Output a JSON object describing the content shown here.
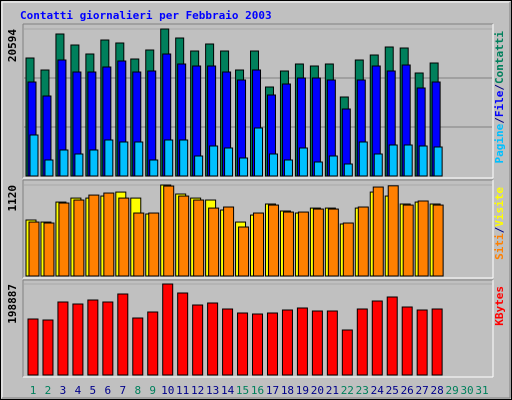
{
  "chart_data": [
    {
      "type": "bar",
      "title": "Contatti giornalieri per Febbraio 2003",
      "legend_separator": "/",
      "ylim": [
        0,
        20594
      ],
      "yticks": [
        20594
      ],
      "series": [
        {
          "name": "Contatti",
          "color": "#00805c",
          "values": [
            16531,
            14850,
            19894,
            18352,
            17092,
            19053,
            18633,
            16391,
            17652,
            20594,
            19333,
            17512,
            18493,
            17512,
            14850,
            17512,
            12469,
            14710,
            15691,
            15410,
            15691,
            11068,
            16251,
            16951,
            18072,
            17932,
            14430,
            15831,
            null,
            null,
            null
          ]
        },
        {
          "name": "File",
          "color": "#0000ff",
          "values": [
            13169,
            11208,
            16251,
            14570,
            14570,
            15271,
            16111,
            14570,
            14710,
            17092,
            15691,
            15410,
            15410,
            14570,
            13449,
            14850,
            11348,
            12889,
            13729,
            13729,
            13449,
            9386,
            13449,
            15410,
            14710,
            15551,
            12329,
            13169,
            null,
            null,
            null
          ]
        },
        {
          "name": "Pagine",
          "color": "#00c0ff",
          "values": [
            5744,
            2242,
            3643,
            3082,
            3643,
            5044,
            4763,
            4763,
            2242,
            5044,
            5044,
            2802,
            4203,
            3923,
            2522,
            6725,
            3082,
            2242,
            3923,
            1961,
            2802,
            1681,
            4763,
            3082,
            4343,
            4343,
            4203,
            4063,
            null,
            null,
            null
          ]
        }
      ]
    },
    {
      "type": "bar",
      "legend_separator": "/",
      "ylim": [
        0,
        1120
      ],
      "yticks": [
        1120
      ],
      "series": [
        {
          "name": "Visite",
          "color": "#ffff00",
          "values": [
            689,
            664,
            910,
            959,
            959,
            984,
            1033,
            959,
            763,
            1120,
            1009,
            959,
            935,
            812,
            664,
            750,
            886,
            800,
            775,
            836,
            836,
            640,
            836,
            1033,
            984,
            886,
            910,
            886,
            null,
            null,
            null
          ]
        },
        {
          "name": "Siti",
          "color": "#ff8000",
          "values": [
            664,
            652,
            898,
            935,
            996,
            1021,
            959,
            775,
            775,
            1107,
            984,
            935,
            836,
            849,
            603,
            775,
            873,
            787,
            787,
            824,
            824,
            652,
            849,
            1095,
            1110,
            873,
            923,
            873,
            null,
            null,
            null
          ]
        }
      ]
    },
    {
      "type": "bar",
      "ylim": [
        0,
        198887
      ],
      "yticks": [
        198887
      ],
      "series": [
        {
          "name": "KBytes",
          "color": "#ff0000",
          "values": [
            122394,
            120208,
            159549,
            155178,
            163920,
            159549,
            177034,
            124579,
            137693,
            198887,
            179219,
            152992,
            157363,
            144250,
            135507,
            133322,
            135507,
            142066,
            146435,
            139878,
            139878,
            98352,
            144250,
            161734,
            170477,
            148621,
            142064,
            144250,
            null,
            null,
            null
          ]
        }
      ],
      "categories": [
        "1",
        "2",
        "3",
        "4",
        "5",
        "6",
        "7",
        "8",
        "9",
        "10",
        "11",
        "12",
        "13",
        "14",
        "15",
        "16",
        "17",
        "18",
        "19",
        "20",
        "21",
        "22",
        "23",
        "24",
        "25",
        "26",
        "27",
        "28",
        "29",
        "30",
        "31"
      ],
      "category_colors": [
        "#00805c",
        "#00805c",
        "#00008b",
        "#00008b",
        "#00008b",
        "#00008b",
        "#00008b",
        "#00805c",
        "#00805c",
        "#00008b",
        "#00008b",
        "#00008b",
        "#00008b",
        "#00008b",
        "#00805c",
        "#00805c",
        "#00008b",
        "#00008b",
        "#00008b",
        "#00008b",
        "#00008b",
        "#00805c",
        "#00805c",
        "#00008b",
        "#00008b",
        "#00008b",
        "#00008b",
        "#00008b",
        "#00805c",
        "#00805c",
        "#00805c"
      ]
    }
  ]
}
